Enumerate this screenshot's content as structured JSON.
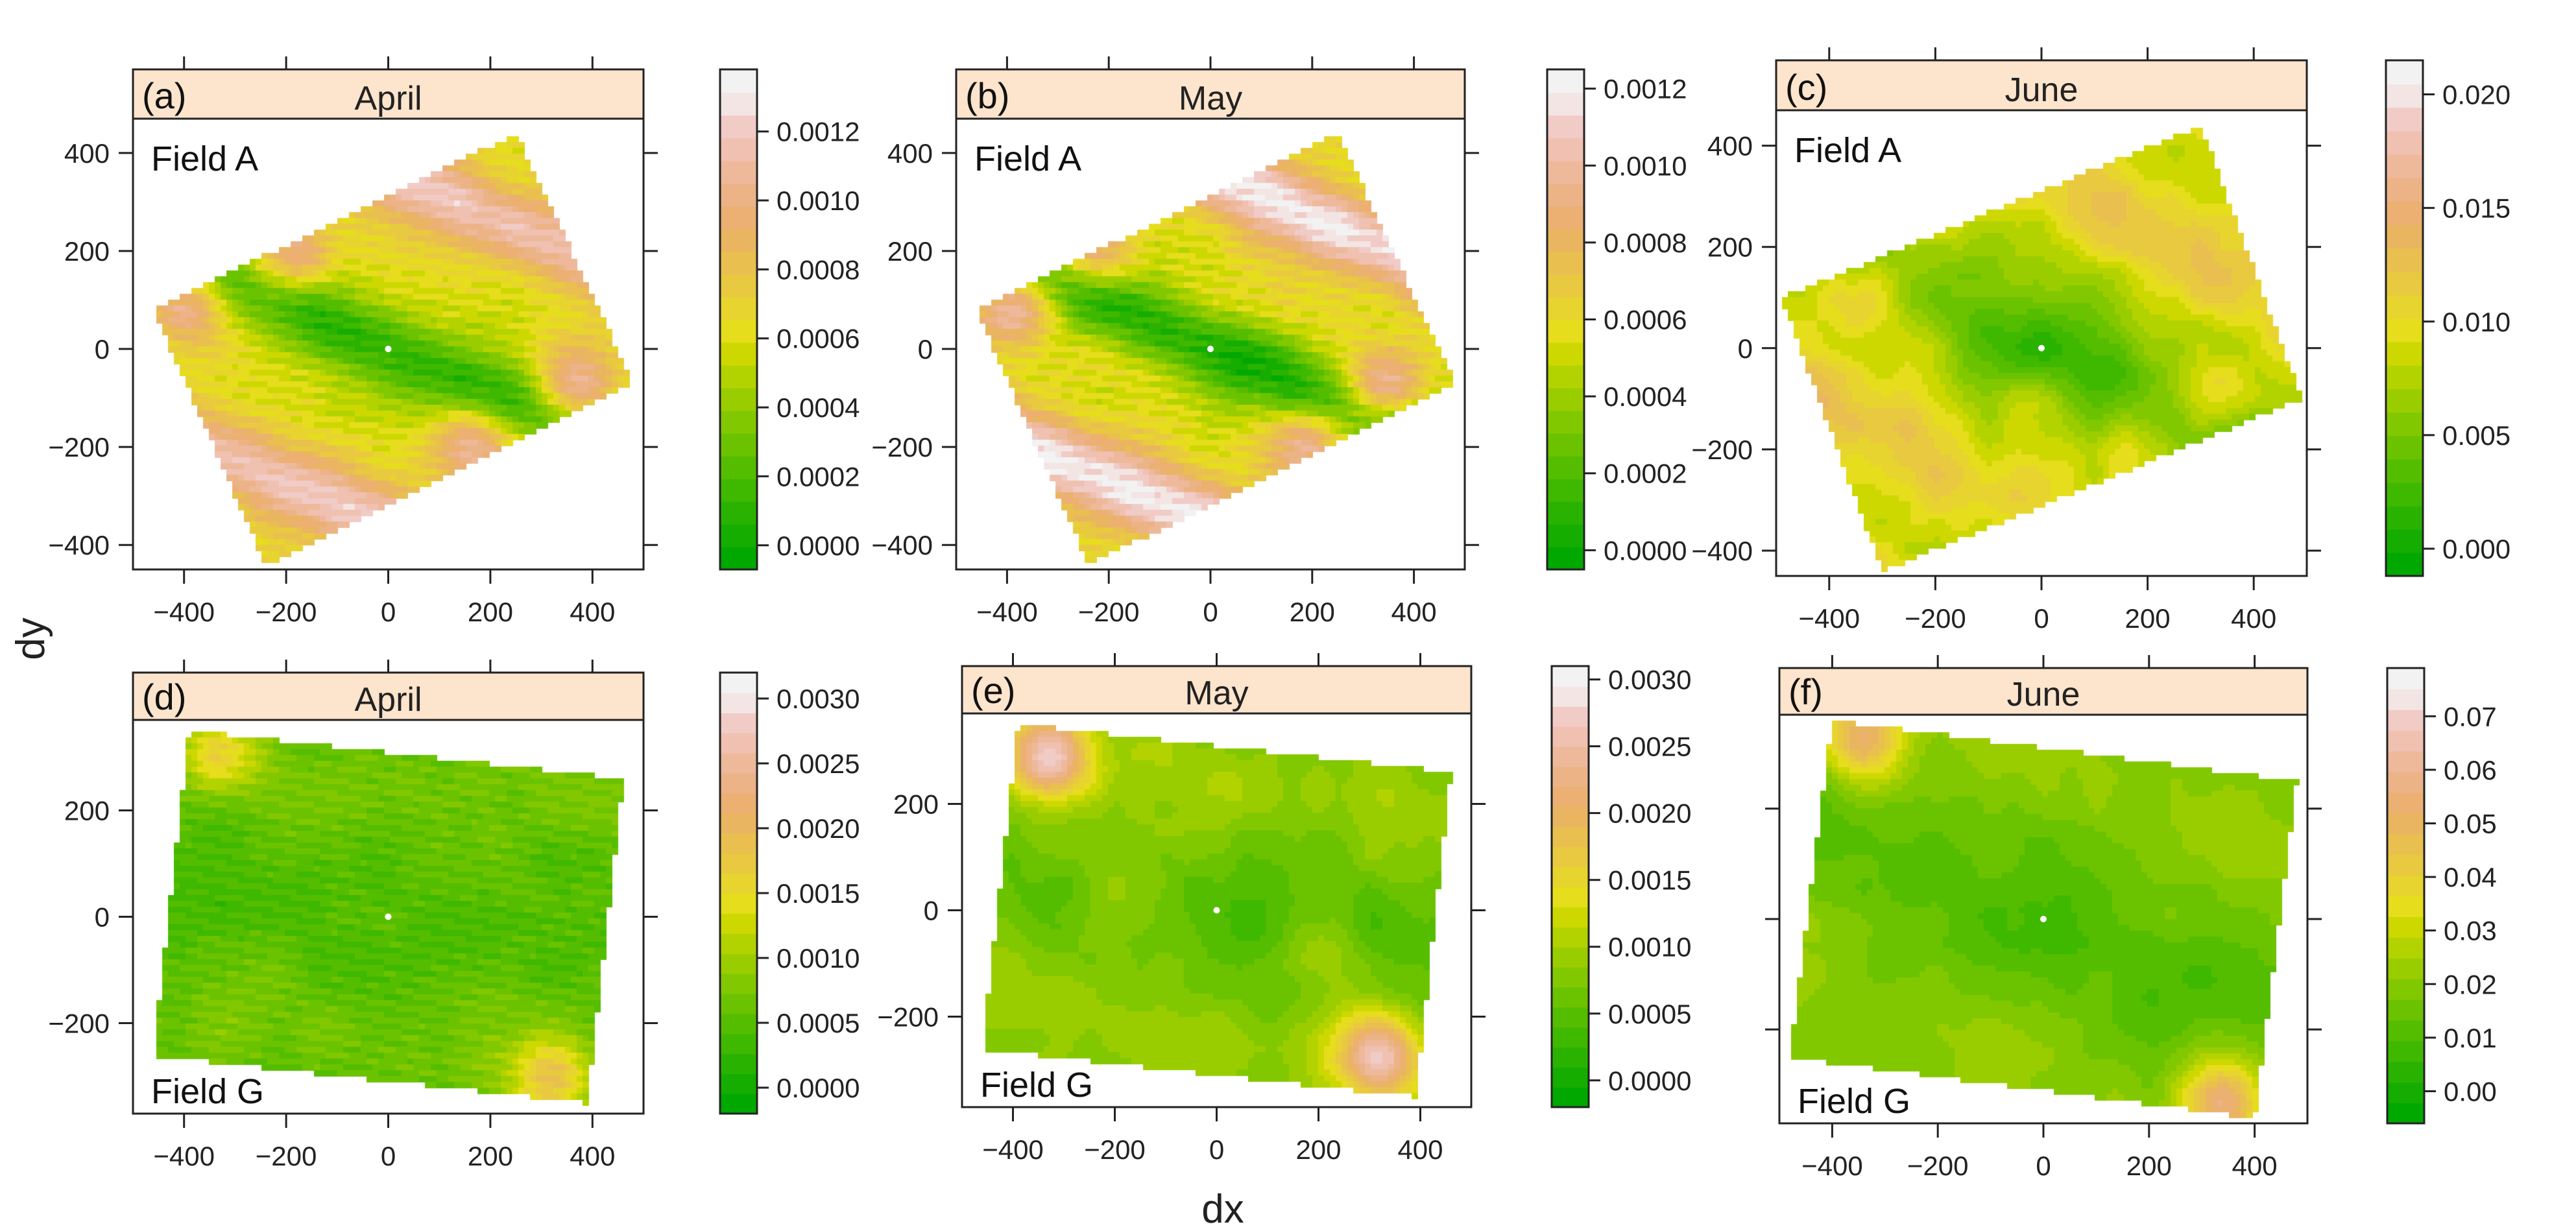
{
  "figure": {
    "xlabel": "dx",
    "ylabel": "dy"
  },
  "palette": [
    "#00a800",
    "#14ad00",
    "#29b300",
    "#3fb800",
    "#55bd00",
    "#6bc300",
    "#82c800",
    "#9acd00",
    "#b3d300",
    "#cdd800",
    "#e6dd1c",
    "#e8d42f",
    "#e8c940",
    "#e9c050",
    "#eab560",
    "#ebb072",
    "#ecb387",
    "#eeb99b",
    "#f0c1b1",
    "#f1cbc6",
    "#f2e5e3",
    "#f2f2f2"
  ],
  "chart_data": [
    {
      "id": "a",
      "type": "heatmap",
      "label": "(a)",
      "strip": "April",
      "field": "Field A",
      "field_label_position": "top-left",
      "xlim": [
        -500,
        500
      ],
      "ylim": [
        -450,
        470
      ],
      "xticks": [
        -400,
        -200,
        0,
        200,
        400
      ],
      "yticks": [
        -400,
        -200,
        0,
        200,
        400
      ],
      "corners": [
        [
          -460,
          80
        ],
        [
          250,
          440
        ],
        [
          480,
          -70
        ],
        [
          -240,
          -440
        ]
      ],
      "scale": {
        "ticks": [
          0.0,
          0.0002,
          0.0004,
          0.0006,
          0.0008,
          0.001,
          0.0012
        ],
        "labels": [
          "0.0000",
          "0.0002",
          "0.0004",
          "0.0006",
          "0.0008",
          "0.0010",
          "0.0012"
        ],
        "min": -7e-05,
        "max": 0.00138,
        "band_step": 0.0001
      },
      "pattern": {
        "base": 0.00062,
        "ridge": 0.00055,
        "angle": -24,
        "spacing": 330,
        "ridge_width": 55,
        "hotspots": [
          [
            -400,
            95,
            0.0006
          ],
          [
            -190,
            190,
            0.00045
          ],
          [
            370,
            -85,
            0.0006
          ],
          [
            170,
            -190,
            0.00045
          ]
        ],
        "noise": 8e-05,
        "striped": true
      }
    },
    {
      "id": "b",
      "type": "heatmap",
      "label": "(b)",
      "strip": "May",
      "field": "Field A",
      "field_label_position": "top-left",
      "xlim": [
        -500,
        500
      ],
      "ylim": [
        -450,
        470
      ],
      "xticks": [
        -400,
        -200,
        0,
        200,
        400
      ],
      "yticks": [
        -400,
        -200,
        0,
        200,
        400
      ],
      "corners": [
        [
          -460,
          80
        ],
        [
          250,
          440
        ],
        [
          480,
          -70
        ],
        [
          -240,
          -440
        ]
      ],
      "scale": {
        "ticks": [
          0.0,
          0.0002,
          0.0004,
          0.0006,
          0.0008,
          0.001,
          0.0012
        ],
        "labels": [
          "0.0000",
          "0.0002",
          "0.0004",
          "0.0006",
          "0.0008",
          "0.0010",
          "0.0012"
        ],
        "min": -5e-05,
        "max": 0.00125,
        "band_step": 0.0001
      },
      "pattern": {
        "base": 0.00058,
        "ridge": 0.0006,
        "angle": -24,
        "spacing": 330,
        "ridge_width": 55,
        "hotspots": [
          [
            -380,
            95,
            0.0006
          ],
          [
            -230,
            190,
            0.00045
          ],
          [
            340,
            -80,
            0.0006
          ],
          [
            190,
            -190,
            0.00045
          ]
        ],
        "noise": 8e-05,
        "striped": true
      }
    },
    {
      "id": "c",
      "type": "heatmap",
      "label": "(c)",
      "strip": "June",
      "field": "Field A",
      "field_label_position": "top-left",
      "xlim": [
        -500,
        500
      ],
      "ylim": [
        -450,
        470
      ],
      "xticks": [
        -400,
        -200,
        0,
        200,
        400
      ],
      "yticks": [
        -400,
        -200,
        0,
        200,
        400
      ],
      "corners": [
        [
          -490,
          100
        ],
        [
          300,
          440
        ],
        [
          490,
          -100
        ],
        [
          -300,
          -440
        ]
      ],
      "scale": {
        "ticks": [
          0.0,
          0.005,
          0.01,
          0.015,
          0.02
        ],
        "labels": [
          "0.000",
          "0.005",
          "0.010",
          "0.015",
          "0.020"
        ],
        "min": -0.0012,
        "max": 0.0215,
        "band_step": 0.0012
      },
      "pattern": {
        "base": 0.0075,
        "ridge": 0.0045,
        "angle": -28,
        "spacing": 300,
        "ridge_width": 70,
        "hotspots": [
          [
            -330,
            110,
            0.006
          ],
          [
            -210,
            250,
            0.004
          ],
          [
            320,
            -90,
            0.005
          ],
          [
            190,
            -200,
            0.004
          ]
        ],
        "noise": 0.002,
        "striped": false
      }
    },
    {
      "id": "d",
      "type": "heatmap",
      "label": "(d)",
      "strip": "April",
      "field": "Field G",
      "field_label_position": "bottom-left",
      "xlim": [
        -500,
        500
      ],
      "ylim": [
        -370,
        370
      ],
      "xticks": [
        -400,
        -200,
        0,
        200,
        400
      ],
      "yticks": [
        -200,
        0,
        200
      ],
      "corners": [
        [
          -390,
          350
        ],
        [
          460,
          260
        ],
        [
          390,
          -350
        ],
        [
          -460,
          -260
        ]
      ],
      "scale": {
        "ticks": [
          0.0,
          0.0005,
          0.001,
          0.0015,
          0.002,
          0.0025,
          0.003
        ],
        "labels": [
          "0.0000",
          "0.0005",
          "0.0010",
          "0.0015",
          "0.0020",
          "0.0025",
          "0.0030"
        ],
        "min": -0.0002,
        "max": 0.0032,
        "band_step": 0.00025
      },
      "pattern": {
        "base": 0.00055,
        "ridge": 0.00015,
        "angle": -8,
        "spacing": 260,
        "ridge_width": 60,
        "hotspots": [
          [
            -330,
            305,
            0.0009
          ],
          [
            320,
            -300,
            0.001
          ]
        ],
        "noise": 0.00015,
        "striped": true
      }
    },
    {
      "id": "e",
      "type": "heatmap",
      "label": "(e)",
      "strip": "May",
      "field": "Field G",
      "field_label_position": "bottom-left",
      "xlim": [
        -500,
        500
      ],
      "ylim": [
        -370,
        370
      ],
      "xticks": [
        -400,
        -200,
        0,
        200,
        400
      ],
      "yticks": [
        -200,
        0,
        200
      ],
      "corners": [
        [
          -390,
          350
        ],
        [
          460,
          260
        ],
        [
          390,
          -350
        ],
        [
          -460,
          -260
        ]
      ],
      "scale": {
        "ticks": [
          0.0,
          0.0005,
          0.001,
          0.0015,
          0.002,
          0.0025,
          0.003
        ],
        "labels": [
          "0.0000",
          "0.0005",
          "0.0010",
          "0.0015",
          "0.0020",
          "0.0025",
          "0.0030"
        ],
        "min": -0.0002,
        "max": 0.0031,
        "band_step": 0.00025
      },
      "pattern": {
        "base": 0.0007,
        "ridge": 0.00025,
        "angle": -10,
        "spacing": 260,
        "ridge_width": 70,
        "hotspots": [
          [
            -330,
            290,
            0.0019
          ],
          [
            320,
            -270,
            0.0019
          ],
          [
            -200,
            20,
            0.0004
          ],
          [
            200,
            -50,
            0.0004
          ]
        ],
        "noise": 0.00018,
        "striped": false
      }
    },
    {
      "id": "f",
      "type": "heatmap",
      "label": "(f)",
      "strip": "June",
      "field": "Field G",
      "field_label_position": "bottom-left",
      "xlim": [
        -500,
        500
      ],
      "ylim": [
        -370,
        370
      ],
      "xticks": [
        -400,
        -200,
        0,
        200,
        400
      ],
      "yticks": [],
      "corners": [
        [
          -400,
          360
        ],
        [
          480,
          250
        ],
        [
          400,
          -360
        ],
        [
          -480,
          -250
        ]
      ],
      "scale": {
        "ticks": [
          0.0,
          0.01,
          0.02,
          0.03,
          0.04,
          0.05,
          0.06,
          0.07
        ],
        "labels": [
          "0.00",
          "0.01",
          "0.02",
          "0.03",
          "0.04",
          "0.05",
          "0.06",
          "0.07"
        ],
        "min": -0.006,
        "max": 0.079,
        "band_step": 0.005
      },
      "pattern": {
        "base": 0.016,
        "ridge": 0.006,
        "angle": -22,
        "spacing": 280,
        "ridge_width": 80,
        "hotspots": [
          [
            -340,
            330,
            0.035
          ],
          [
            340,
            -330,
            0.035
          ]
        ],
        "noise": 0.004,
        "striped": false
      }
    }
  ]
}
